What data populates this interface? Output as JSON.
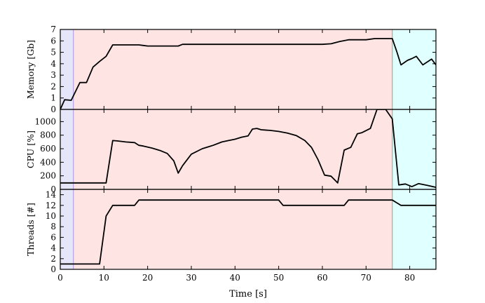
{
  "chart_data": {
    "type": "line",
    "x_label": "Time [s]",
    "x_range": [
      0,
      86
    ],
    "x_ticks": [
      "0",
      "10",
      "20",
      "30",
      "40",
      "50",
      "60",
      "70",
      "80"
    ],
    "phases": [
      {
        "start": 0,
        "end": 3,
        "color": "#e6e6fa"
      },
      {
        "start": 3,
        "end": 76,
        "color": "#ffe4e4"
      },
      {
        "start": 76,
        "end": 86,
        "color": "#e0ffff"
      }
    ],
    "panels": [
      {
        "y_label": "Memory [Gb]",
        "y_range": [
          0,
          7
        ],
        "y_ticks": [
          "0",
          "1",
          "2",
          "3",
          "4",
          "5",
          "6",
          "7"
        ],
        "x": [
          0,
          1,
          2.5,
          4.5,
          6,
          7.5,
          9,
          10.5,
          12,
          18,
          19,
          20,
          26,
          27,
          28,
          50,
          60,
          62,
          64,
          66,
          70,
          72,
          76,
          77,
          78,
          79.5,
          80.5,
          81.5,
          83,
          85,
          86
        ],
        "y": [
          0,
          0.85,
          0.8,
          2.35,
          2.35,
          3.7,
          4.2,
          4.65,
          5.65,
          5.65,
          5.6,
          5.55,
          5.55,
          5.55,
          5.7,
          5.7,
          5.7,
          5.75,
          5.95,
          6.1,
          6.1,
          6.2,
          6.2,
          5.1,
          3.9,
          4.3,
          4.45,
          4.65,
          3.9,
          4.4,
          3.9
        ]
      },
      {
        "y_label": "CPU [%]",
        "y_range": [
          0,
          1180
        ],
        "y_ticks": [
          "0",
          "200",
          "400",
          "600",
          "800",
          "1000"
        ],
        "x": [
          0,
          10.5,
          12,
          13,
          15,
          17,
          18,
          19,
          21,
          23,
          24.5,
          26,
          27,
          28,
          30,
          32.5,
          34,
          35,
          37,
          38.5,
          40,
          41.5,
          43,
          44,
          45,
          46,
          48,
          50,
          52,
          54,
          56,
          57.5,
          59,
          60.5,
          62,
          63.5,
          65,
          66.5,
          68,
          69,
          71,
          72.5,
          74.5,
          76,
          77.5,
          79,
          80.5,
          82,
          84,
          86
        ],
        "y": [
          95,
          95,
          720,
          715,
          700,
          690,
          650,
          640,
          610,
          570,
          530,
          420,
          240,
          350,
          520,
          600,
          630,
          650,
          700,
          720,
          740,
          770,
          790,
          890,
          900,
          880,
          870,
          855,
          830,
          795,
          720,
          620,
          440,
          210,
          195,
          95,
          580,
          620,
          820,
          835,
          900,
          1180,
          1180,
          1040,
          65,
          80,
          40,
          85,
          60,
          30
        ]
      },
      {
        "y_label": "Threads [#]",
        "y_range": [
          0,
          15
        ],
        "y_ticks": [
          "0",
          "2",
          "4",
          "6",
          "8",
          "10",
          "12",
          "14"
        ],
        "x": [
          0,
          9,
          10.5,
          12,
          17,
          18,
          19,
          50,
          51,
          52,
          65,
          66,
          67,
          76,
          77,
          78,
          86
        ],
        "y": [
          1,
          1,
          10,
          12,
          12,
          13,
          13,
          13,
          12,
          12,
          12,
          13,
          13,
          13,
          12.5,
          12,
          12
        ]
      }
    ]
  }
}
